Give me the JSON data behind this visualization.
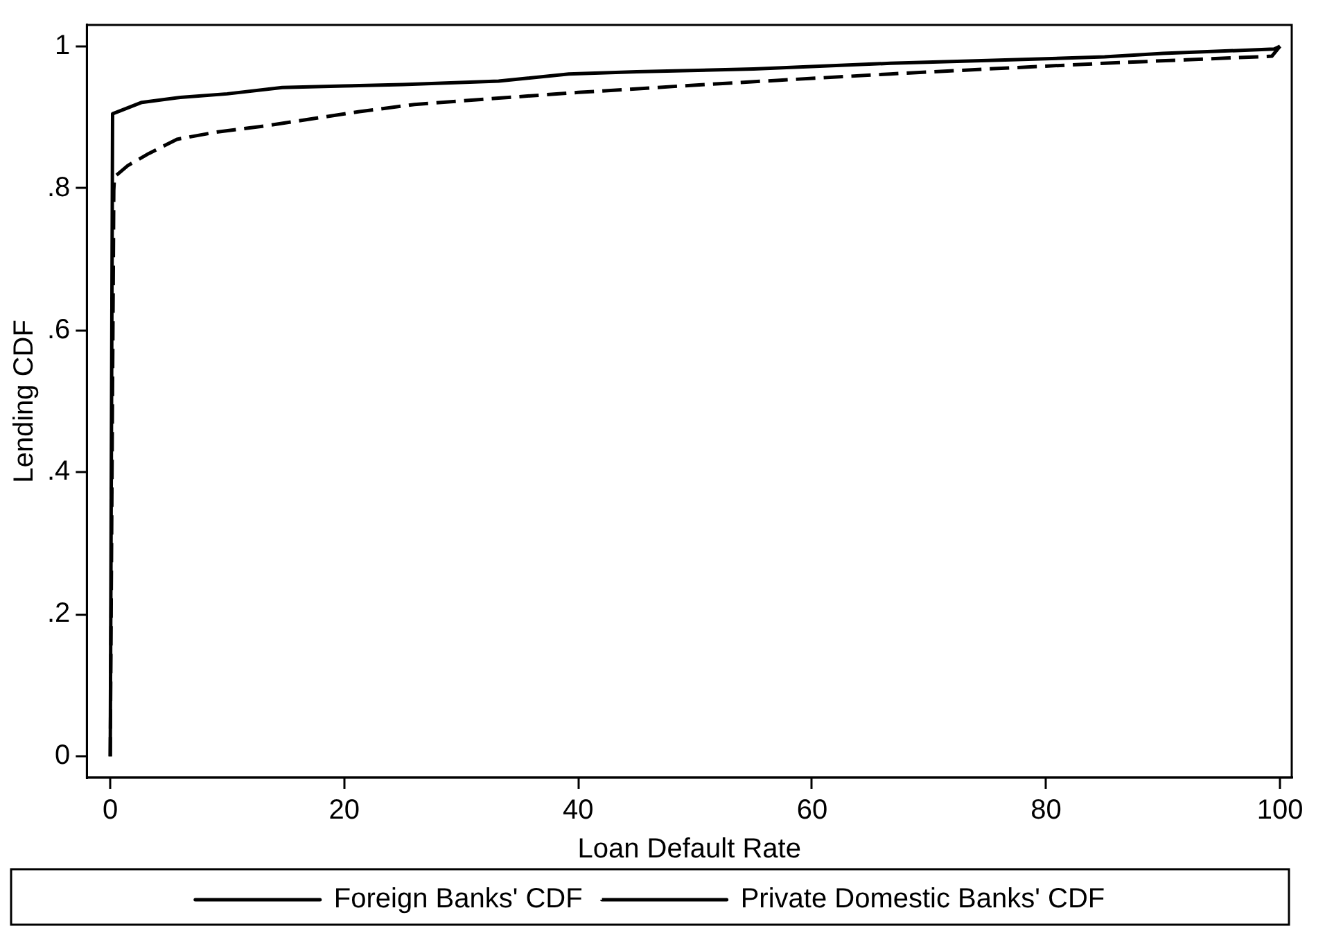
{
  "chart_data": {
    "type": "line",
    "xlabel": "Loan Default Rate",
    "ylabel": "Lending CDF",
    "xlim": [
      -2,
      101
    ],
    "xticks": [
      0,
      20,
      40,
      60,
      80,
      100
    ],
    "ylim": [
      -0.03,
      1.03
    ],
    "yticks": [
      {
        "value": 0,
        "label": "0"
      },
      {
        "value": 0.2,
        "label": ".2"
      },
      {
        "value": 0.4,
        "label": ".4"
      },
      {
        "value": 0.6,
        "label": ".6"
      },
      {
        "value": 0.8,
        "label": ".8"
      },
      {
        "value": 1,
        "label": "1"
      }
    ],
    "grid": false,
    "legend": "bottom",
    "marker": "none",
    "series": [
      {
        "name": "Foreign Banks' CDF",
        "color": "#000000",
        "line_style": "solid",
        "x": [
          0,
          0.2,
          1,
          2.7,
          6,
          10,
          14.7,
          20,
          25,
          33.2,
          39.2,
          45,
          55,
          66.7,
          75,
          85,
          90,
          99.5,
          100
        ],
        "values": [
          0,
          0.905,
          0.91,
          0.921,
          0.928,
          0.933,
          0.942,
          0.944,
          0.946,
          0.951,
          0.961,
          0.964,
          0.968,
          0.976,
          0.98,
          0.985,
          0.99,
          0.996,
          1
        ]
      },
      {
        "name": "Private Domestic Banks' CDF",
        "color": "#000000",
        "line_style": "dashed",
        "x": [
          0,
          0.3,
          0.36,
          1.5,
          3.3,
          5.7,
          9,
          13.3,
          21.3,
          26,
          33.2,
          40,
          48.7,
          57,
          66.7,
          75,
          85,
          92,
          99.3,
          100
        ],
        "values": [
          0,
          0.797,
          0.816,
          0.832,
          0.849,
          0.869,
          0.879,
          0.888,
          0.908,
          0.918,
          0.927,
          0.935,
          0.944,
          0.952,
          0.961,
          0.968,
          0.976,
          0.981,
          0.986,
          1
        ]
      }
    ]
  }
}
